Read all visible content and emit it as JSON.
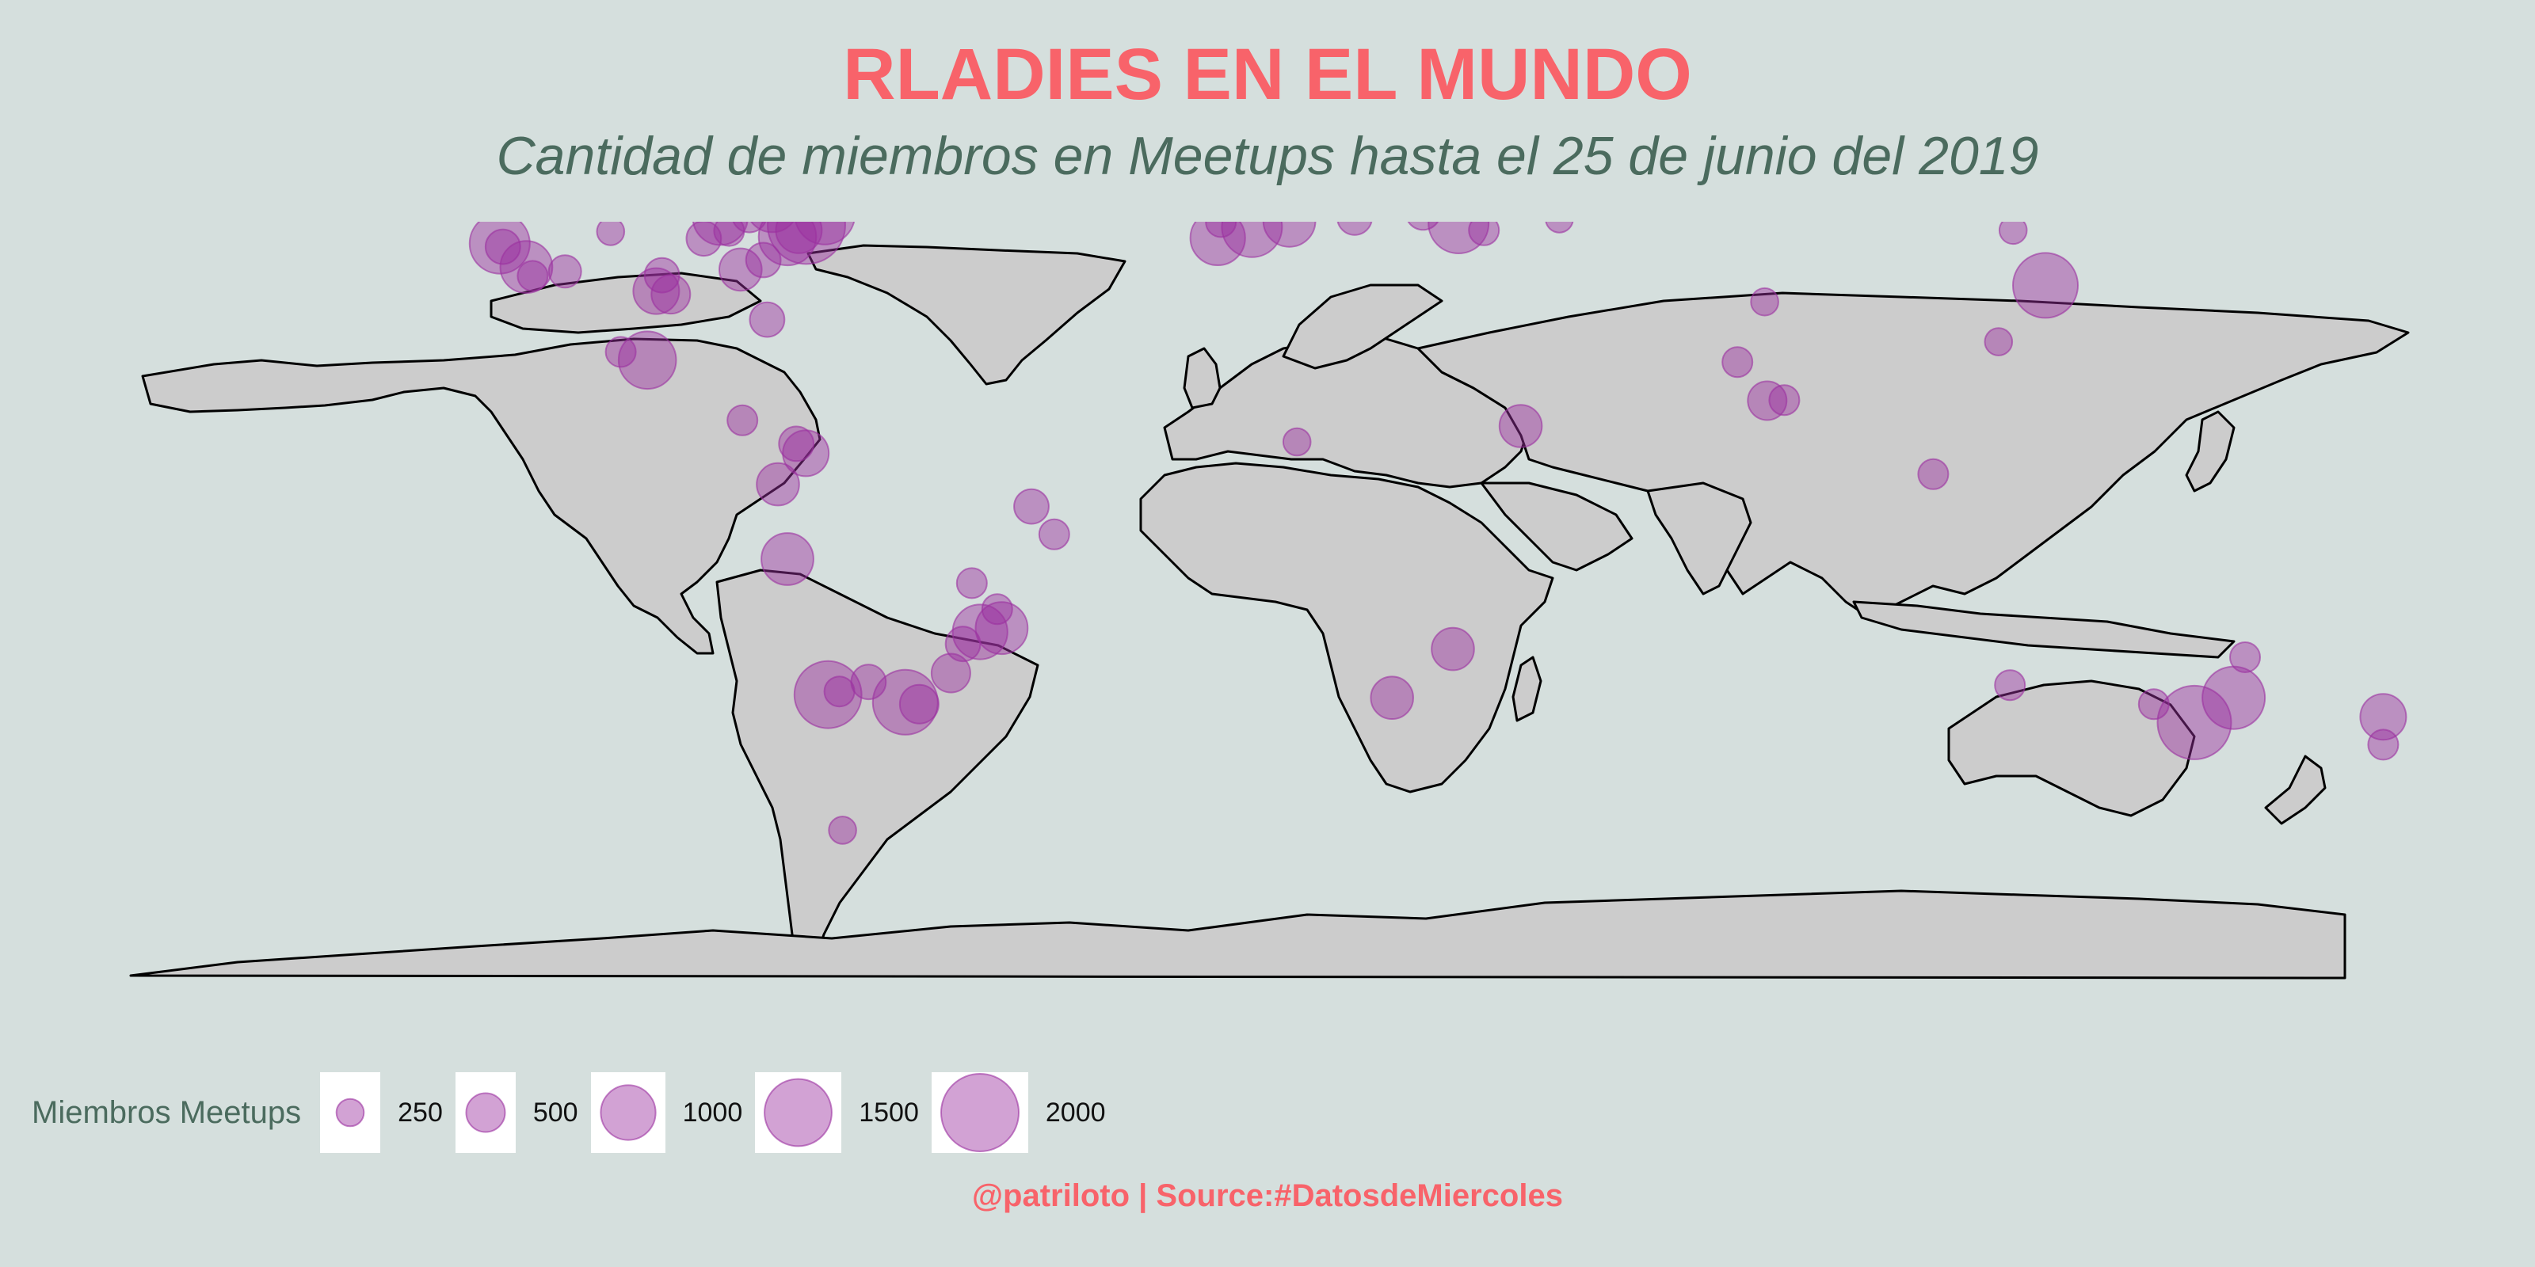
{
  "title": "RLADIES EN EL MUNDO",
  "subtitle": "Cantidad de miembros en Meetups hasta el 25 de junio del 2019",
  "caption": "@patriloto | Source:#DatosdeMiercoles",
  "colors": {
    "background": "#d5dfdd",
    "land": "#cccccc",
    "border": "#000000",
    "bubble_fill": "#9b30a0",
    "title": "#f8636a",
    "subtitle": "#4b6b5e"
  },
  "legend": {
    "title": "Miembros Meetups",
    "entries": [
      {
        "label": "250",
        "value": 250
      },
      {
        "label": "500",
        "value": 500
      },
      {
        "label": "1000",
        "value": 1000
      },
      {
        "label": "1500",
        "value": 1500
      },
      {
        "label": "2000",
        "value": 2000
      }
    ]
  },
  "chart_data": {
    "type": "bubble-map",
    "projection": "equirectangular",
    "size_variable": "Miembros Meetups",
    "points": [
      {
        "lon": -122.4,
        "lat": 37.8,
        "members": 1200
      },
      {
        "lon": -122.3,
        "lat": 47.6,
        "members": 800
      },
      {
        "lon": -118.2,
        "lat": 34.1,
        "members": 900
      },
      {
        "lon": -117.2,
        "lat": 32.7,
        "members": 300
      },
      {
        "lon": -121.9,
        "lat": 37.3,
        "members": 400
      },
      {
        "lon": -123.1,
        "lat": 49.3,
        "members": 500
      },
      {
        "lon": -112.1,
        "lat": 33.4,
        "members": 350
      },
      {
        "lon": -104.9,
        "lat": 39.7,
        "members": 250
      },
      {
        "lon": -97.7,
        "lat": 30.3,
        "members": 700
      },
      {
        "lon": -95.4,
        "lat": 29.8,
        "members": 500
      },
      {
        "lon": -96.8,
        "lat": 32.8,
        "members": 400
      },
      {
        "lon": -93.3,
        "lat": 45.0,
        "members": 500
      },
      {
        "lon": -87.6,
        "lat": 41.9,
        "members": 1000
      },
      {
        "lon": -90.2,
        "lat": 38.6,
        "members": 400
      },
      {
        "lon": -86.2,
        "lat": 39.8,
        "members": 300
      },
      {
        "lon": -84.4,
        "lat": 33.7,
        "members": 600
      },
      {
        "lon": -83.0,
        "lat": 42.3,
        "members": 400
      },
      {
        "lon": -80.8,
        "lat": 35.2,
        "members": 400
      },
      {
        "lon": -80.2,
        "lat": 25.8,
        "members": 400
      },
      {
        "lon": -79.4,
        "lat": 43.7,
        "members": 900
      },
      {
        "lon": -77.0,
        "lat": 38.9,
        "members": 1100
      },
      {
        "lon": -75.2,
        "lat": 39.9,
        "members": 700
      },
      {
        "lon": -74.0,
        "lat": 40.7,
        "members": 2000
      },
      {
        "lon": -71.1,
        "lat": 42.4,
        "members": 1200
      },
      {
        "lon": -73.6,
        "lat": 45.5,
        "members": 600
      },
      {
        "lon": -99.1,
        "lat": 19.4,
        "members": 1100
      },
      {
        "lon": -103.3,
        "lat": 20.7,
        "members": 300
      },
      {
        "lon": -84.1,
        "lat": 9.9,
        "members": 300
      },
      {
        "lon": -74.1,
        "lat": 4.7,
        "members": 700
      },
      {
        "lon": -75.6,
        "lat": 6.2,
        "members": 400
      },
      {
        "lon": -78.5,
        "lat": -0.2,
        "members": 600
      },
      {
        "lon": -77.0,
        "lat": -12.0,
        "members": 900
      },
      {
        "lon": -70.6,
        "lat": -33.4,
        "members": 1500
      },
      {
        "lon": -68.8,
        "lat": -32.9,
        "members": 300
      },
      {
        "lon": -64.2,
        "lat": -31.4,
        "members": 400
      },
      {
        "lon": -58.4,
        "lat": -34.6,
        "members": 1400
      },
      {
        "lon": -56.2,
        "lat": -34.9,
        "members": 500
      },
      {
        "lon": -51.2,
        "lat": -30.0,
        "members": 500
      },
      {
        "lon": -49.3,
        "lat": -25.4,
        "members": 400
      },
      {
        "lon": -46.6,
        "lat": -23.5,
        "members": 1000
      },
      {
        "lon": -43.2,
        "lat": -22.9,
        "members": 900
      },
      {
        "lon": -43.9,
        "lat": -19.9,
        "members": 300
      },
      {
        "lon": -47.9,
        "lat": -15.8,
        "members": 300
      },
      {
        "lon": -38.5,
        "lat": -3.7,
        "members": 400
      },
      {
        "lon": -34.9,
        "lat": -8.1,
        "members": 300
      },
      {
        "lon": -68.3,
        "lat": -54.8,
        "members": 250
      },
      {
        "lon": -9.1,
        "lat": 38.7,
        "members": 1000
      },
      {
        "lon": -8.6,
        "lat": 41.2,
        "members": 300
      },
      {
        "lon": -3.7,
        "lat": 40.4,
        "members": 1200
      },
      {
        "lon": 2.2,
        "lat": 41.4,
        "members": 900
      },
      {
        "lon": -0.1,
        "lat": 51.5,
        "members": 2000
      },
      {
        "lon": -2.2,
        "lat": 53.5,
        "members": 400
      },
      {
        "lon": -6.3,
        "lat": 53.3,
        "members": 500
      },
      {
        "lon": -3.2,
        "lat": 55.9,
        "members": 300
      },
      {
        "lon": 2.3,
        "lat": 48.9,
        "members": 1300
      },
      {
        "lon": 4.9,
        "lat": 52.4,
        "members": 800
      },
      {
        "lon": 4.4,
        "lat": 50.8,
        "members": 500
      },
      {
        "lon": 8.7,
        "lat": 50.1,
        "members": 500
      },
      {
        "lon": 13.4,
        "lat": 52.5,
        "members": 900
      },
      {
        "lon": 11.6,
        "lat": 48.1,
        "members": 600
      },
      {
        "lon": 8.5,
        "lat": 47.4,
        "members": 600
      },
      {
        "lon": 9.2,
        "lat": 45.5,
        "members": 500
      },
      {
        "lon": 12.5,
        "lat": 41.9,
        "members": 400
      },
      {
        "lon": 16.4,
        "lat": 48.2,
        "members": 500
      },
      {
        "lon": 14.4,
        "lat": 50.1,
        "members": 400
      },
      {
        "lon": 21.0,
        "lat": 52.2,
        "members": 600
      },
      {
        "lon": 19.0,
        "lat": 47.5,
        "members": 700
      },
      {
        "lon": 20.5,
        "lat": 44.8,
        "members": 300
      },
      {
        "lon": 26.1,
        "lat": 44.4,
        "members": 400
      },
      {
        "lon": 23.3,
        "lat": 42.7,
        "members": 400
      },
      {
        "lon": 12.6,
        "lat": 55.7,
        "members": 400
      },
      {
        "lon": 18.1,
        "lat": 59.3,
        "members": 500
      },
      {
        "lon": 10.8,
        "lat": 59.9,
        "members": 400
      },
      {
        "lon": 24.9,
        "lat": 60.2,
        "members": 300
      },
      {
        "lon": 30.5,
        "lat": 50.5,
        "members": 700
      },
      {
        "lon": 28.9,
        "lat": 41.0,
        "members": 1200
      },
      {
        "lon": 32.9,
        "lat": 39.9,
        "members": 300
      },
      {
        "lon": 44.8,
        "lat": 41.7,
        "members": 250
      },
      {
        "lon": 37.6,
        "lat": 55.8,
        "members": 400
      },
      {
        "lon": 30.3,
        "lat": 59.9,
        "members": 300
      },
      {
        "lon": 38.7,
        "lat": 9.0,
        "members": 600
      },
      {
        "lon": 3.4,
        "lat": 6.5,
        "members": 250
      },
      {
        "lon": 18.4,
        "lat": -33.9,
        "members": 600
      },
      {
        "lon": 28.0,
        "lat": -26.2,
        "members": 600
      },
      {
        "lon": 72.9,
        "lat": 19.1,
        "members": 300
      },
      {
        "lon": 77.6,
        "lat": 13.0,
        "members": 500
      },
      {
        "lon": 80.3,
        "lat": 13.1,
        "members": 300
      },
      {
        "lon": 77.2,
        "lat": 28.6,
        "members": 250
      },
      {
        "lon": 116.4,
        "lat": 39.9,
        "members": 250
      },
      {
        "lon": 121.5,
        "lat": 31.2,
        "members": 1400
      },
      {
        "lon": 114.1,
        "lat": 22.3,
        "members": 250
      },
      {
        "lon": 103.8,
        "lat": 1.4,
        "members": 300
      },
      {
        "lon": 115.9,
        "lat": -31.9,
        "members": 300
      },
      {
        "lon": 138.6,
        "lat": -34.9,
        "members": 300
      },
      {
        "lon": 145.0,
        "lat": -37.8,
        "members": 1800
      },
      {
        "lon": 151.2,
        "lat": -33.9,
        "members": 1300
      },
      {
        "lon": 153.0,
        "lat": -27.5,
        "members": 300
      },
      {
        "lon": 174.8,
        "lat": -36.9,
        "members": 700
      },
      {
        "lon": 174.8,
        "lat": -41.3,
        "members": 300
      }
    ]
  }
}
